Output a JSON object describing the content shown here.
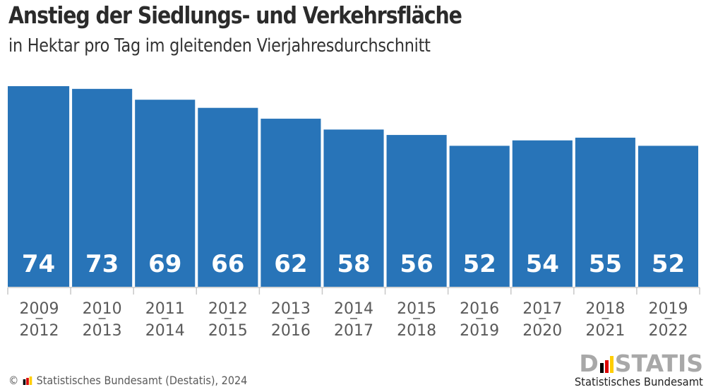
{
  "header": {
    "title": "Anstieg der Siedlungs- und Verkehrsfläche",
    "subtitle": "in Hektar pro Tag im gleitenden Vierjahresdurchschnitt"
  },
  "chart_data": {
    "type": "bar",
    "title": "Anstieg der Siedlungs- und Verkehrsfläche",
    "subtitle": "in Hektar pro Tag im gleitenden Vierjahresdurchschnitt",
    "xlabel": "",
    "ylabel": "",
    "categories": [
      [
        "2009",
        "2012"
      ],
      [
        "2010",
        "2013"
      ],
      [
        "2011",
        "2014"
      ],
      [
        "2012",
        "2015"
      ],
      [
        "2013",
        "2016"
      ],
      [
        "2014",
        "2017"
      ],
      [
        "2015",
        "2018"
      ],
      [
        "2016",
        "2019"
      ],
      [
        "2017",
        "2020"
      ],
      [
        "2018",
        "2021"
      ],
      [
        "2019",
        "2022"
      ]
    ],
    "category_separator": "–",
    "values": [
      74,
      73,
      69,
      66,
      62,
      58,
      56,
      52,
      54,
      55,
      52
    ],
    "data_labels": [
      "74",
      "73",
      "69",
      "66",
      "62",
      "58",
      "56",
      "52",
      "54",
      "55",
      "52"
    ],
    "ylim": [
      0,
      74
    ],
    "grid": false,
    "legend": "none",
    "colors": {
      "bar": "#2874b8",
      "overlay": "#3b8ccb",
      "label": "#ffffff",
      "axis": "#c8c8c8",
      "tick_text": "#5a5a5a"
    }
  },
  "footer": {
    "copyright_symbol": "©",
    "source": "Statistisches Bundesamt (Destatis), 2024"
  },
  "logo": {
    "left_letter": "D",
    "right_letters": "STATIS",
    "tagline": "Statistisches Bundesamt",
    "bar_colors": [
      "#000000",
      "#dd0000",
      "#ffce00"
    ]
  }
}
